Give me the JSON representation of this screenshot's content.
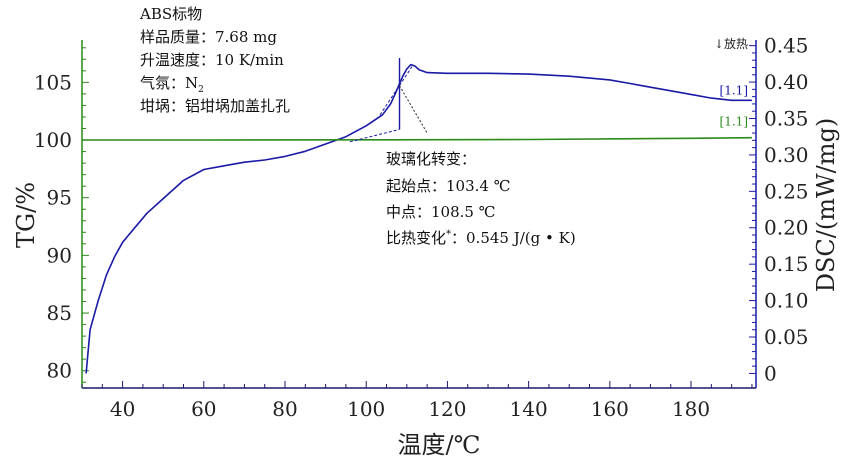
{
  "chart_data": {
    "type": "line",
    "xlabel": "温度/℃",
    "ylabel_left": "TG/%",
    "ylabel_right": "DSC/(mW/mg)",
    "xlim": [
      30,
      196
    ],
    "ylim_left": [
      78.5,
      108.5
    ],
    "ylim_right": [
      -0.02,
      0.455
    ],
    "x_ticks": [
      40,
      60,
      80,
      100,
      120,
      140,
      160,
      180
    ],
    "y_left_ticks": [
      80,
      85,
      90,
      95,
      100,
      105
    ],
    "y_right_ticks": [
      "0",
      "0.05",
      "0.10",
      "0.15",
      "0.20",
      "0.25",
      "0.30",
      "0.35",
      "0.40",
      "0.45"
    ],
    "y_right_tick_values": [
      0,
      0.05,
      0.1,
      0.15,
      0.2,
      0.25,
      0.3,
      0.35,
      0.4,
      0.45
    ],
    "exo_label": "↓放热",
    "series": [
      {
        "axis": "right",
        "color": "#1a1aa6",
        "x": [
          31,
          32,
          34,
          36,
          38,
          40,
          43,
          46,
          50,
          55,
          60,
          65,
          70,
          75,
          80,
          85,
          90,
          95,
          100,
          104,
          106,
          107,
          108,
          109,
          110,
          111,
          112,
          113,
          115,
          120,
          130,
          140,
          150,
          160,
          165,
          170,
          175,
          180,
          185,
          190,
          195
        ],
        "values": [
          0,
          0.06,
          0.1,
          0.135,
          0.16,
          0.18,
          0.2,
          0.22,
          0.24,
          0.265,
          0.28,
          0.285,
          0.29,
          0.293,
          0.298,
          0.305,
          0.315,
          0.325,
          0.34,
          0.355,
          0.37,
          0.382,
          0.395,
          0.408,
          0.418,
          0.424,
          0.422,
          0.417,
          0.413,
          0.412,
          0.412,
          0.411,
          0.408,
          0.403,
          0.398,
          0.393,
          0.388,
          0.383,
          0.378,
          0.375,
          0.375
        ]
      },
      {
        "axis": "left",
        "color": "#2a8a1a",
        "x": [
          30,
          60,
          100,
          140,
          180,
          195
        ],
        "values": [
          100.0,
          100.0,
          100.02,
          100.05,
          100.15,
          100.2
        ]
      }
    ],
    "series_tags": [
      "[1.1]",
      "[1.1]"
    ],
    "annotations": {
      "sample": [
        "ABS标物",
        "样品质量：7.68 mg",
        "升温速度：10 K/min",
        "气氛：N",
        "坩埚：铝坩埚加盖扎孔"
      ],
      "sample_subscript": "2",
      "glass_transition": [
        "玻璃化转变：",
        "起始点：103.4 ℃",
        "中点：108.5 ℃",
        "比热变化",
        "：0.545 J/(g • K)"
      ],
      "glass_transition_superscript": "*",
      "onset_x": 103.4,
      "midpoint_x": 108.5,
      "step_x": 108.2,
      "step_low": 0.335,
      "step_high": 0.433
    }
  },
  "colors": {
    "dsc": "#1a1aa6",
    "tg": "#2a8a1a",
    "axis_left": "#2a8a1a",
    "axis_right": "#1a1aa6",
    "text": "#222222"
  }
}
